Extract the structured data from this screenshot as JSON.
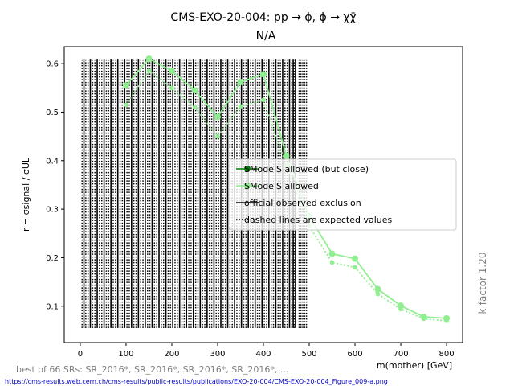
{
  "chart_data": {
    "type": "line",
    "title": "CMS-EXO-20-004: pp → ϕ, ϕ → χχ̄",
    "subtitle": "N/A",
    "xlabel": "m(mother) [GeV]",
    "ylabel": "r = σsignal / σUL",
    "xlim": [
      -35,
      835
    ],
    "ylim": [
      0.025,
      0.635
    ],
    "xticks": [
      0,
      100,
      200,
      300,
      400,
      500,
      600,
      700,
      800
    ],
    "yticks": [
      0.1,
      0.2,
      0.3,
      0.4,
      0.5,
      0.6
    ],
    "xtick_labels": [
      "0",
      "100",
      "200",
      "300",
      "400",
      "500",
      "600",
      "700",
      "800"
    ],
    "ytick_labels": [
      "0.1",
      "0.2",
      "0.3",
      "0.4",
      "0.5",
      "0.6"
    ],
    "series": [
      {
        "name": "SModelS allowed",
        "style": "solid",
        "color": "#90ee90",
        "x": [
          100,
          150,
          200,
          250,
          300,
          350,
          400,
          450,
          500,
          550,
          600,
          650,
          700,
          750,
          800
        ],
        "y": [
          0.555,
          0.61,
          0.585,
          0.545,
          0.49,
          0.562,
          0.578,
          0.41,
          0.285,
          0.208,
          0.198,
          0.135,
          0.101,
          0.078,
          0.075
        ]
      },
      {
        "name": "SModelS allowed (expected)",
        "style": "dotted",
        "color": "#90ee90",
        "x": [
          100,
          150,
          200,
          250,
          300,
          350,
          400,
          450,
          500,
          550,
          600,
          650,
          700,
          750,
          800
        ],
        "y": [
          0.515,
          0.585,
          0.55,
          0.51,
          0.45,
          0.512,
          0.525,
          0.39,
          0.265,
          0.19,
          0.18,
          0.125,
          0.094,
          0.074,
          0.07
        ]
      }
    ],
    "exclusion_lines": {
      "ymin": 0.055,
      "ymax": 0.61,
      "observed_x": [
        8,
        22,
        37,
        52,
        67,
        82,
        97,
        112,
        127,
        142,
        157,
        172,
        187,
        202,
        217,
        232,
        247,
        262,
        277,
        292,
        307,
        322,
        337,
        352,
        367,
        382,
        397,
        412,
        427,
        442,
        457,
        465,
        470
      ],
      "expected_x": [
        4,
        12,
        17,
        27,
        32,
        42,
        47,
        57,
        62,
        72,
        77,
        87,
        92,
        102,
        107,
        117,
        122,
        132,
        137,
        147,
        152,
        162,
        167,
        177,
        182,
        192,
        197,
        207,
        212,
        222,
        227,
        237,
        242,
        252,
        257,
        267,
        272,
        282,
        287,
        297,
        302,
        312,
        317,
        327,
        332,
        342,
        347,
        357,
        362,
        372,
        377,
        387,
        392,
        402,
        407,
        417,
        422,
        432,
        437,
        447,
        452,
        462,
        467,
        478,
        482,
        486,
        490,
        494
      ]
    },
    "legend": {
      "position": "right",
      "entries": [
        {
          "label": "SModelS allowed (but close)",
          "color": "#008000",
          "style": "solid-marker"
        },
        {
          "label": "SModelS allowed",
          "color": "#90ee90",
          "style": "solid-marker"
        },
        {
          "label": "official observed exclusion",
          "color": "#000000",
          "style": "solid"
        },
        {
          "label": "dashed lines are expected values",
          "color": "#000000",
          "style": "dotted"
        }
      ]
    }
  },
  "annotations": {
    "side_note": "k-factor 1.20",
    "footer": "best of 66 SRs: SR_2016*, SR_2016*, SR_2016*, SR_2016*, ...",
    "url": "https://cms-results.web.cern.ch/cms-results/public-results/publications/EXO-20-004/CMS-EXO-20-004_Figure_009-a.png"
  }
}
